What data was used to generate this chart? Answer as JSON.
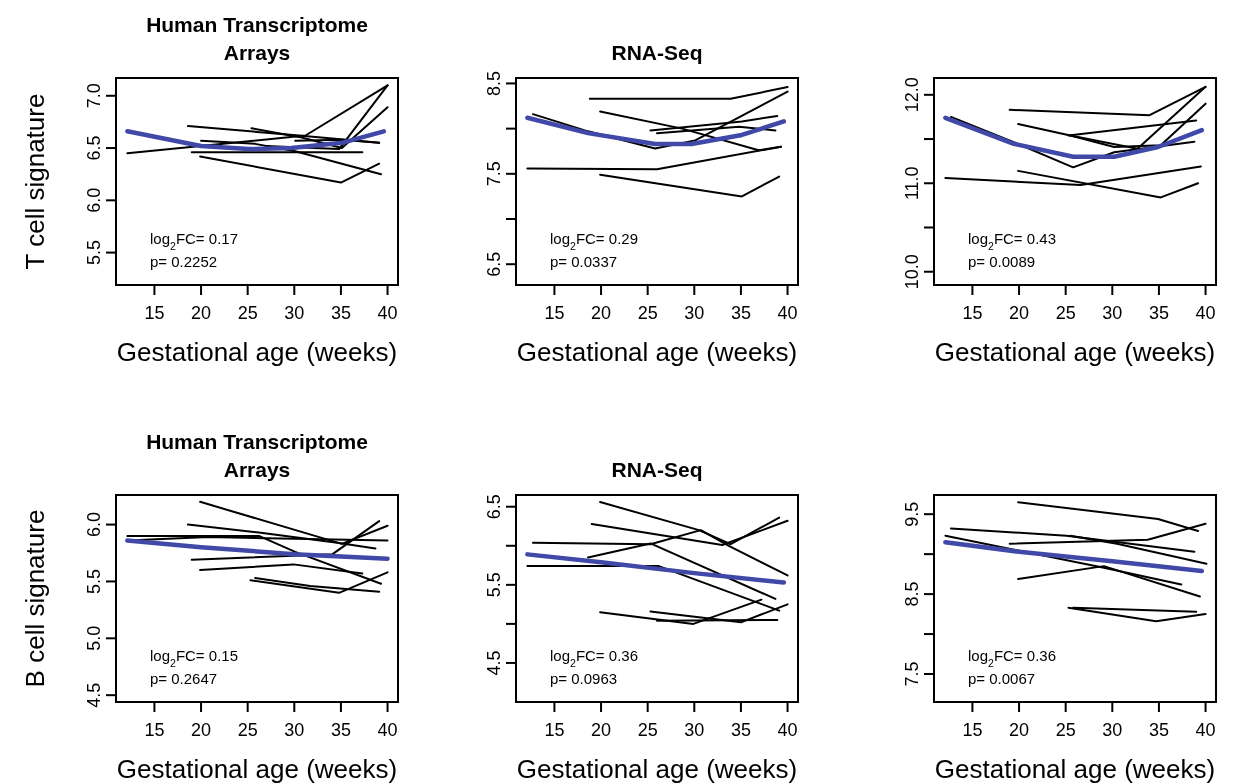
{
  "chart_data": [
    {
      "type": "line",
      "title": "Human Transcriptome Arrays",
      "xlabel": "Gestational age (weeks)",
      "ylabel": "T cell signature",
      "xlim": [
        10.88,
        41.12
      ],
      "xticks": [
        15,
        20,
        25,
        30,
        35,
        40
      ],
      "ylim": [
        5.19,
        7.17
      ],
      "yticks": [
        5.5,
        {
          "value": 6,
          "label": "6.0"
        },
        6.5,
        {
          "value": 7,
          "label": "7.0"
        }
      ],
      "annotations": [
        "log$_{2}$FC= 0.17",
        "p= 0.2252"
      ],
      "series": [
        {
          "color": "#000000",
          "x": [
            12.1,
            31.2,
            40
          ],
          "values": [
            6.45,
            6.62,
            7.1
          ]
        },
        {
          "color": "#000000",
          "x": [
            18.6,
            30.5,
            39.1
          ],
          "values": [
            6.71,
            6.62,
            6.55
          ]
        },
        {
          "color": "#000000",
          "x": [
            25.4,
            30.8,
            35.1,
            40
          ],
          "values": [
            6.69,
            6.6,
            6.5,
            6.89
          ]
        },
        {
          "color": "#000000",
          "x": [
            20,
            25.8,
            30.1,
            39.3
          ],
          "values": [
            6.57,
            6.54,
            6.47,
            6.25
          ]
        },
        {
          "color": "#000000",
          "x": [
            19,
            37.3
          ],
          "values": [
            6.46,
            6.46
          ]
        },
        {
          "color": "#000000",
          "x": [
            19.9,
            35,
            39.1
          ],
          "values": [
            6.42,
            6.17,
            6.35
          ]
        },
        {
          "color": "#000000",
          "x": [
            26.9,
            34.8,
            40
          ],
          "values": [
            6.52,
            6.49,
            7.1
          ]
        },
        {
          "color": "#000000",
          "x": [
            30.1,
            35.1,
            39.1
          ],
          "values": [
            6.57,
            6.58,
            6.55
          ]
        },
        {
          "color": "#4048a8",
          "x": [
            12.1,
            20,
            25.1,
            29.7,
            35.1,
            39.6
          ],
          "values": [
            6.66,
            6.52,
            6.49,
            6.5,
            6.55,
            6.66
          ]
        }
      ]
    },
    {
      "type": "line",
      "title": "RNA-Seq",
      "xlabel": "Gestational age (weeks)",
      "xlim": [
        10.88,
        41.12
      ],
      "xticks": [
        15,
        20,
        25,
        30,
        35,
        40
      ],
      "ylim": [
        6.27,
        8.56
      ],
      "yticks": [
        6.5,
        {
          "value": 7,
          "label": null
        },
        7.5,
        {
          "value": 8,
          "label": null
        },
        8.5
      ],
      "annotations": [
        "log$_{2}$FC= 0.29",
        "p= 0.0337"
      ],
      "series": [
        {
          "color": "#000000",
          "x": [
            18.8,
            33.9,
            40
          ],
          "values": [
            8.33,
            8.33,
            8.46
          ]
        },
        {
          "color": "#000000",
          "x": [
            12.7,
            18.6,
            25.8,
            30.1,
            40
          ],
          "values": [
            8.16,
            7.97,
            7.78,
            7.87,
            8.41
          ]
        },
        {
          "color": "#000000",
          "x": [
            19.9,
            28.7,
            36.9,
            39.3
          ],
          "values": [
            8.19,
            8.0,
            7.76,
            7.8
          ]
        },
        {
          "color": "#000000",
          "x": [
            12.1,
            26,
            39.3
          ],
          "values": [
            7.56,
            7.55,
            7.8
          ]
        },
        {
          "color": "#000000",
          "x": [
            19.9,
            35.1,
            39.1
          ],
          "values": [
            7.49,
            7.25,
            7.47
          ]
        },
        {
          "color": "#000000",
          "x": [
            25.3,
            35.1,
            38.9
          ],
          "values": [
            7.98,
            8.08,
            8.14
          ]
        },
        {
          "color": "#000000",
          "x": [
            26,
            34.8,
            38.7
          ],
          "values": [
            7.95,
            8.02,
            7.98
          ]
        },
        {
          "color": "#4048a8",
          "x": [
            12.1,
            18.6,
            25.8,
            29.7,
            35.1,
            39.6
          ],
          "values": [
            8.12,
            7.95,
            7.83,
            7.83,
            7.93,
            8.08
          ]
        }
      ]
    },
    {
      "type": "line",
      "xlabel": "Gestational age (weeks)",
      "xlim": [
        10.88,
        41.12
      ],
      "xticks": [
        15,
        20,
        25,
        30,
        35,
        40
      ],
      "ylim": [
        9.85,
        12.19
      ],
      "yticks": [
        {
          "value": 10,
          "label": "10.0"
        },
        {
          "value": 10.5,
          "label": null
        },
        {
          "value": 11,
          "label": "11.0"
        },
        {
          "value": 11.5,
          "label": null
        },
        {
          "value": 12,
          "label": "12.0"
        }
      ],
      "annotations": [
        "log$_{2}$FC= 0.43",
        "p= 0.0089"
      ],
      "series": [
        {
          "color": "#000000",
          "x": [
            12.7,
            19.3,
            25.8,
            30.2,
            38.8
          ],
          "values": [
            11.75,
            11.47,
            11.18,
            11.35,
            11.47
          ]
        },
        {
          "color": "#000000",
          "x": [
            19,
            34,
            40
          ],
          "values": [
            11.83,
            11.77,
            12.09
          ]
        },
        {
          "color": "#000000",
          "x": [
            19.9,
            25.5,
            30.2,
            35.2,
            40
          ],
          "values": [
            11.67,
            11.54,
            11.41,
            11.43,
            11.9
          ]
        },
        {
          "color": "#000000",
          "x": [
            25.3,
            39
          ],
          "values": [
            11.54,
            11.71
          ]
        },
        {
          "color": "#000000",
          "x": [
            25.5,
            32.7,
            40
          ],
          "values": [
            11.54,
            11.39,
            12.09
          ]
        },
        {
          "color": "#000000",
          "x": [
            12.1,
            26.6,
            39.5
          ],
          "values": [
            11.06,
            10.98,
            11.19
          ]
        },
        {
          "color": "#000000",
          "x": [
            19.9,
            35.2,
            39.2
          ],
          "values": [
            11.14,
            10.84,
            11.0
          ]
        },
        {
          "color": "#4048a8",
          "x": [
            12.1,
            19.3,
            25.8,
            30.2,
            34.9,
            39.6
          ],
          "values": [
            11.74,
            11.45,
            11.3,
            11.3,
            11.41,
            11.6
          ]
        }
      ]
    },
    {
      "type": "line",
      "title": "Human Transcriptome Arrays",
      "xlabel": "Gestational age (weeks)",
      "ylabel": "B cell signature",
      "xlim": [
        10.88,
        41.12
      ],
      "xticks": [
        15,
        20,
        25,
        30,
        35,
        40
      ],
      "ylim": [
        4.44,
        6.26
      ],
      "yticks": [
        4.5,
        {
          "value": 5,
          "label": "5.0"
        },
        5.5,
        {
          "value": 6,
          "label": "6.0"
        }
      ],
      "annotations": [
        "log$_{2}$FC= 0.15",
        "p= 0.2647"
      ],
      "series": [
        {
          "color": "#000000",
          "x": [
            19.9,
            35.1,
            40
          ],
          "values": [
            6.2,
            5.83,
            5.99
          ]
        },
        {
          "color": "#000000",
          "x": [
            18.6,
            26.2,
            34.6,
            38.7
          ],
          "values": [
            6.0,
            5.93,
            5.84,
            5.79
          ]
        },
        {
          "color": "#000000",
          "x": [
            12.1,
            26.2,
            30.1,
            39.3
          ],
          "values": [
            5.9,
            5.9,
            5.76,
            5.48
          ]
        },
        {
          "color": "#000000",
          "x": [
            12.1,
            20.8,
            40
          ],
          "values": [
            5.86,
            5.89,
            5.86
          ]
        },
        {
          "color": "#000000",
          "x": [
            19,
            34.1,
            39.1
          ],
          "values": [
            5.69,
            5.74,
            6.03
          ]
        },
        {
          "color": "#000000",
          "x": [
            19.9,
            29.9,
            37.3
          ],
          "values": [
            5.6,
            5.65,
            5.57
          ]
        },
        {
          "color": "#000000",
          "x": [
            25.3,
            34.8,
            40
          ],
          "values": [
            5.51,
            5.4,
            5.58
          ]
        },
        {
          "color": "#000000",
          "x": [
            25.8,
            31.7,
            39.1
          ],
          "values": [
            5.53,
            5.46,
            5.41
          ]
        },
        {
          "color": "#4048a8",
          "x": [
            12.1,
            20,
            30,
            40
          ],
          "values": [
            5.86,
            5.8,
            5.74,
            5.7
          ]
        }
      ]
    },
    {
      "type": "line",
      "title": "RNA-Seq",
      "xlabel": "Gestational age (weeks)",
      "xlim": [
        10.88,
        41.12
      ],
      "xticks": [
        15,
        20,
        25,
        30,
        35,
        40
      ],
      "ylim": [
        4.0,
        6.65
      ],
      "yticks": [
        4.5,
        {
          "value": 5,
          "label": null
        },
        5.5,
        {
          "value": 6,
          "label": null
        },
        6.5
      ],
      "annotations": [
        "log$_{2}$FC= 0.36",
        "p= 0.0963"
      ],
      "series": [
        {
          "color": "#000000",
          "x": [
            19.9,
            30.5,
            33.9,
            39.1
          ],
          "values": [
            6.56,
            6.2,
            6.02,
            6.36
          ]
        },
        {
          "color": "#000000",
          "x": [
            19,
            33,
            40
          ],
          "values": [
            6.28,
            6.01,
            6.32
          ]
        },
        {
          "color": "#000000",
          "x": [
            12.7,
            25.3,
            30.7,
            33.7,
            40
          ],
          "values": [
            6.04,
            6.02,
            6.2,
            6.0,
            5.62
          ]
        },
        {
          "color": "#000000",
          "x": [
            18.6,
            25.3,
            38.7
          ],
          "values": [
            5.85,
            6.03,
            5.32
          ]
        },
        {
          "color": "#000000",
          "x": [
            12.1,
            26.2,
            39.1
          ],
          "values": [
            5.74,
            5.74,
            5.17
          ]
        },
        {
          "color": "#000000",
          "x": [
            19.9,
            29.9,
            37.2
          ],
          "values": [
            5.15,
            5.0,
            5.31
          ]
        },
        {
          "color": "#000000",
          "x": [
            25.3,
            35,
            40
          ],
          "values": [
            5.16,
            5.02,
            5.25
          ]
        },
        {
          "color": "#000000",
          "x": [
            26,
            38.9
          ],
          "values": [
            5.04,
            5.05
          ]
        },
        {
          "color": "#4048a8",
          "x": [
            12.1,
            20,
            30,
            39.6
          ],
          "values": [
            5.89,
            5.79,
            5.65,
            5.53
          ]
        }
      ]
    },
    {
      "type": "line",
      "xlabel": "Gestational age (weeks)",
      "xlim": [
        10.88,
        41.12
      ],
      "xticks": [
        15,
        20,
        25,
        30,
        35,
        40
      ],
      "ylim": [
        7.15,
        9.74
      ],
      "yticks": [
        7.5,
        {
          "value": 8,
          "label": null
        },
        8.5,
        {
          "value": 9,
          "label": null
        },
        9.5
      ],
      "annotations": [
        "log$_{2}$FC= 0.36",
        "p= 0.0067"
      ],
      "series": [
        {
          "color": "#000000",
          "x": [
            19.9,
            34.9,
            39.2
          ],
          "values": [
            9.65,
            9.44,
            9.29
          ]
        },
        {
          "color": "#000000",
          "x": [
            12.7,
            25.1,
            38.8
          ],
          "values": [
            9.32,
            9.23,
            9.03
          ]
        },
        {
          "color": "#000000",
          "x": [
            19,
            33.8,
            40
          ],
          "values": [
            9.13,
            9.18,
            9.38
          ]
        },
        {
          "color": "#000000",
          "x": [
            12.1,
            29.1,
            37.4
          ],
          "values": [
            9.23,
            8.83,
            8.62
          ]
        },
        {
          "color": "#000000",
          "x": [
            25.5,
            30.5,
            40.1
          ],
          "values": [
            9.23,
            9.13,
            8.88
          ]
        },
        {
          "color": "#000000",
          "x": [
            19.9,
            29.1,
            39.4
          ],
          "values": [
            8.69,
            8.85,
            8.47
          ]
        },
        {
          "color": "#000000",
          "x": [
            25.3,
            34.7,
            40
          ],
          "values": [
            8.33,
            8.16,
            8.25
          ]
        },
        {
          "color": "#000000",
          "x": [
            25.8,
            39
          ],
          "values": [
            8.33,
            8.28
          ]
        },
        {
          "color": "#4048a8",
          "x": [
            12.1,
            20,
            30,
            39.6
          ],
          "values": [
            9.15,
            9.03,
            8.91,
            8.79
          ]
        }
      ]
    }
  ]
}
